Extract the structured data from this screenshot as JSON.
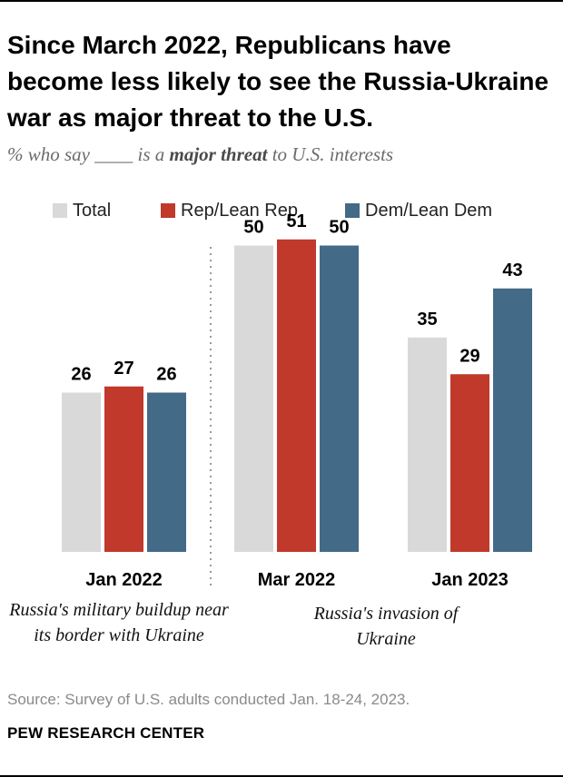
{
  "title": "Since March 2022, Republicans have become less likely to see the Russia-Ukraine war as major threat to the U.S.",
  "subtitle_prefix": "% who say ____ is a",
  "subtitle_emphasis": "major threat",
  "subtitle_suffix": "to U.S. interests",
  "annotations": {
    "left": "Russia's military buildup near its border with Ukraine",
    "right": "Russia's invasion of Ukraine"
  },
  "source": "Source: Survey of U.S. adults conducted Jan. 18-24, 2023.",
  "brand": "PEW RESEARCH CENTER",
  "colors": {
    "total": "#d9d9d9",
    "rep": "#c0392b",
    "dem": "#436a86"
  },
  "chart_data": {
    "type": "bar",
    "categories": [
      "Jan 2022",
      "Mar 2022",
      "Jan 2023"
    ],
    "series": [
      {
        "name": "Total",
        "values": [
          26,
          50,
          35
        ]
      },
      {
        "name": "Rep/Lean Rep",
        "values": [
          27,
          51,
          29
        ]
      },
      {
        "name": "Dem/Lean Dem",
        "values": [
          26,
          50,
          43
        ]
      }
    ],
    "ylim": [
      0,
      60
    ],
    "legend_position": "top",
    "grid": false,
    "divider_after_category": 0
  }
}
